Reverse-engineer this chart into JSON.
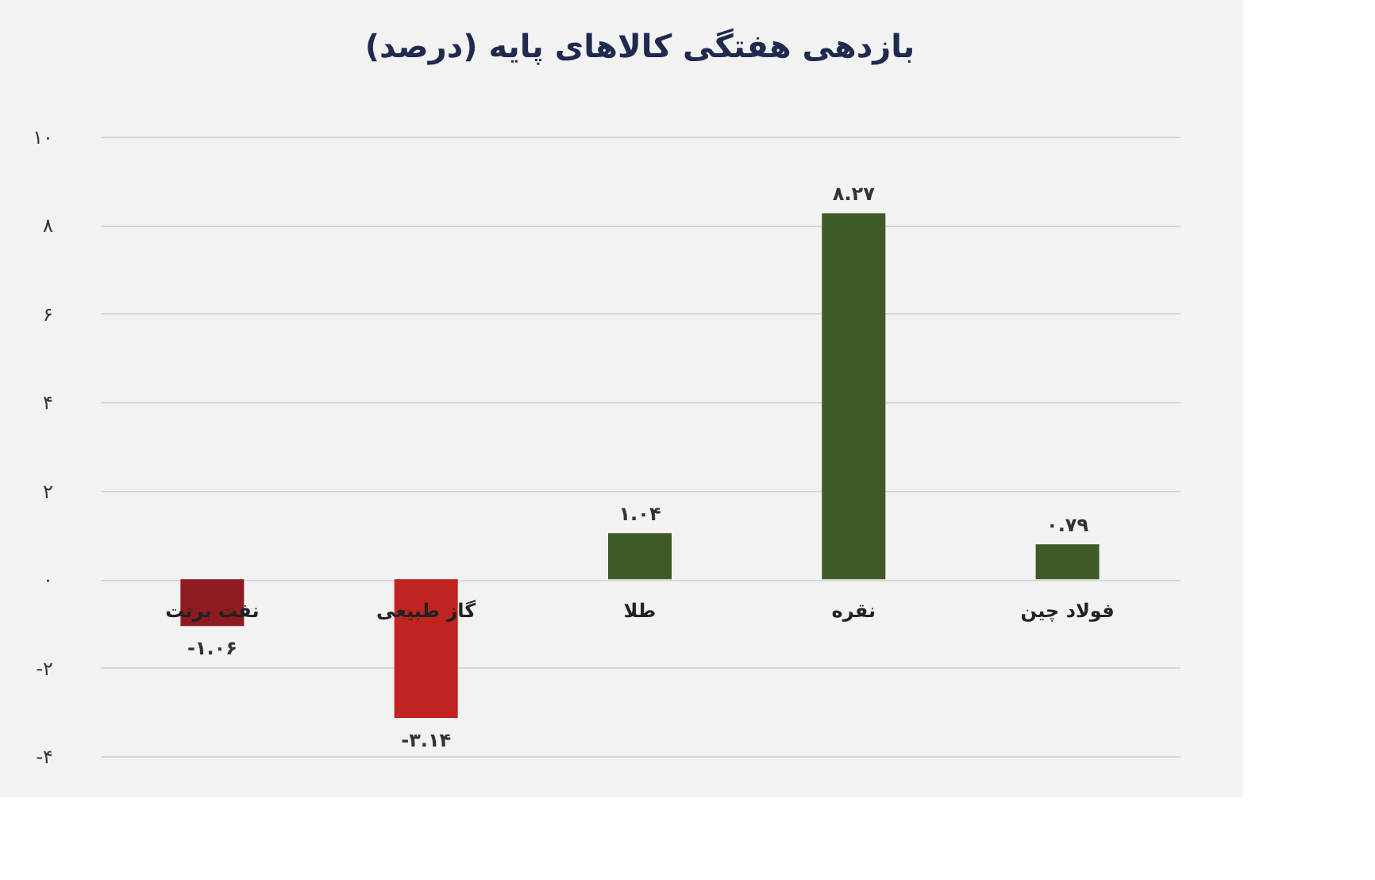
{
  "chart_data": {
    "type": "bar",
    "title": "بازدهی هفتگی کالاهای پایه (درصد)",
    "categories": [
      "نفت برنت",
      "گاز طبیعی",
      "طلا",
      "نقره",
      "فولاد چین"
    ],
    "values": [
      -1.06,
      -3.14,
      1.04,
      8.27,
      0.79
    ],
    "colors": [
      "#8e1b1f",
      "#c02320",
      "#3f5a26",
      "#3f5a26",
      "#3f5a26"
    ],
    "value_labels": [
      "-۱.۰۶",
      "-۳.۱۴",
      "۱.۰۴",
      "۸.۲۷",
      "۰.۷۹"
    ],
    "ylim": [
      -4,
      10
    ],
    "yticks": [
      {
        "value": -4,
        "label": "-۴"
      },
      {
        "value": -2,
        "label": "-۲"
      },
      {
        "value": 0,
        "label": "۰"
      },
      {
        "value": 2,
        "label": "۲"
      },
      {
        "value": 4,
        "label": "۴"
      },
      {
        "value": 6,
        "label": "۶"
      },
      {
        "value": 8,
        "label": "۸"
      },
      {
        "value": 10,
        "label": "۱۰"
      }
    ],
    "grid": "y",
    "tick_labels": "y"
  }
}
